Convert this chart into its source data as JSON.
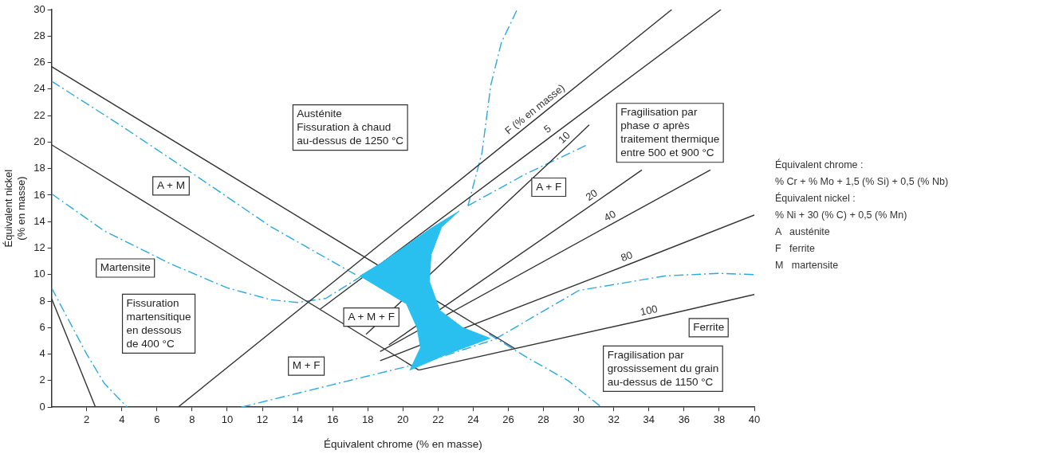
{
  "chart_data": {
    "type": "line",
    "xlabel": "Équivalent chrome (% en masse)",
    "ylabel": "Équivalent nickel\n(% en masse)",
    "xlim": [
      0,
      40
    ],
    "xticks": [
      2,
      4,
      6,
      8,
      10,
      12,
      14,
      16,
      18,
      20,
      22,
      24,
      26,
      28,
      30,
      32,
      34,
      36,
      38,
      40
    ],
    "ylim": [
      0,
      30
    ],
    "yticks": [
      0,
      2,
      4,
      6,
      8,
      10,
      12,
      14,
      16,
      18,
      20,
      22,
      24,
      26,
      28,
      30
    ],
    "grid": false,
    "legend": false,
    "marker": "none",
    "series": [
      {
        "type": "area",
        "color": "#29c0f0",
        "x": [
          17.55,
          18.8,
          21.6,
          23.2,
          22.2,
          21.6,
          21.5,
          22.1,
          23.4,
          24.95,
          22.5,
          20.4,
          21.0,
          20.8,
          20.2,
          17.55
        ],
        "values": [
          9.9,
          10.9,
          13.5,
          14.8,
          13.6,
          11.5,
          9.5,
          7.3,
          6.0,
          5.2,
          4.0,
          2.8,
          4.5,
          6.0,
          7.8,
          9.9
        ]
      },
      {
        "color": "#333333",
        "line_style": "solid",
        "x": [
          0,
          26.4
        ],
        "values": [
          25.7,
          4.4
        ]
      },
      {
        "color": "#333333",
        "line_style": "solid",
        "x": [
          0,
          20.9
        ],
        "values": [
          19.8,
          2.8
        ]
      },
      {
        "color": "#333333",
        "line_style": "solid",
        "x": [
          0,
          2.5
        ],
        "values": [
          8.2,
          0
        ]
      },
      {
        "name": "F (% en masse)",
        "color": "#333333",
        "line_style": "solid",
        "x": [
          7.2,
          27.8,
          35.3
        ],
        "values": [
          0,
          22.0,
          30
        ]
      },
      {
        "name": "5",
        "color": "#333333",
        "line_style": "solid",
        "x": [
          15.3,
          28.5,
          38.1
        ],
        "values": [
          7.4,
          20.5,
          30
        ]
      },
      {
        "name": "10",
        "color": "#333333",
        "line_style": "solid",
        "x": [
          17.9,
          29.5,
          30.6
        ],
        "values": [
          5.5,
          19.9,
          21.3
        ]
      },
      {
        "name": "20",
        "color": "#333333",
        "line_style": "solid",
        "x": [
          19.2,
          31,
          33.6
        ],
        "values": [
          4.7,
          15.5,
          17.9
        ]
      },
      {
        "name": "40",
        "color": "#333333",
        "line_style": "solid",
        "x": [
          18.7,
          32,
          37.5
        ],
        "values": [
          4.2,
          13.9,
          17.9
        ]
      },
      {
        "name": "80",
        "color": "#333333",
        "line_style": "solid",
        "x": [
          18.7,
          32.9,
          40
        ],
        "values": [
          3.5,
          10.8,
          14.5
        ]
      },
      {
        "name": "100",
        "color": "#333333",
        "line_style": "solid",
        "x": [
          20.9,
          34.1,
          40
        ],
        "values": [
          2.8,
          6.7,
          8.5
        ]
      },
      {
        "color": "#29a9e0",
        "line_style": "dashed",
        "x": [
          0,
          4,
          8.4,
          12.5,
          17.3
        ],
        "values": [
          24.6,
          21.2,
          17.3,
          13.6,
          10.0
        ]
      },
      {
        "color": "#29a9e0",
        "line_style": "dashed",
        "x": [
          0,
          3,
          6.8,
          10,
          12.5,
          14,
          15.6,
          17.3,
          19.5
        ],
        "values": [
          16.1,
          13.3,
          10.8,
          9.0,
          8.1,
          7.9,
          8.2,
          9.6,
          11.5
        ]
      },
      {
        "color": "#29a9e0",
        "line_style": "dashed",
        "x": [
          23.7,
          24.5,
          25,
          25.6,
          26.5
        ],
        "values": [
          15.2,
          19.2,
          24.3,
          27.5,
          30
        ]
      },
      {
        "color": "#29a9e0",
        "line_style": "dashed",
        "x": [
          23.7,
          27,
          30.5
        ],
        "values": [
          15.2,
          17.6,
          19.8
        ]
      },
      {
        "color": "#29a9e0",
        "line_style": "dashed",
        "x": [
          10.8,
          16,
          21.25,
          25.2,
          30.0,
          34.9,
          38,
          40
        ],
        "values": [
          0,
          1.7,
          3.4,
          5.1,
          8.8,
          9.9,
          10.1,
          10.0
        ]
      },
      {
        "color": "#29a9e0",
        "line_style": "dashed",
        "x": [
          24.9,
          27,
          29.4,
          31.3
        ],
        "values": [
          5.5,
          3.8,
          2.0,
          0
        ]
      },
      {
        "color": "#29a9e0",
        "line_style": "dashed",
        "x": [
          0,
          1,
          2,
          3,
          4.3
        ],
        "values": [
          9.0,
          6.5,
          4.0,
          1.8,
          0
        ]
      }
    ],
    "annotations": [
      "Austénite\nFissuration à chaud\nau-dessus de 1250 °C",
      "A + M",
      "Martensite",
      "Fissuration\nmartensitique\nen dessous\nde 400 °C",
      "A + M + F",
      "M + F",
      "A + F",
      "Fragilisation par\nphase σ après\ntraitement thermique\nentre 500 et 900 °C",
      "Ferrite",
      "Fragilisation par\ngrossissement du grain\nau-dessus de 1150 °C",
      "Équivalent chrome :",
      "% Cr + % Mo + 1,5 (% Si) + 0,5 (% Nb)",
      "Équivalent nickel :",
      "% Ni + 30 (% C) + 0,5 (% Mn)",
      "A   austénite",
      "F   ferrite",
      "M   martensite"
    ]
  }
}
